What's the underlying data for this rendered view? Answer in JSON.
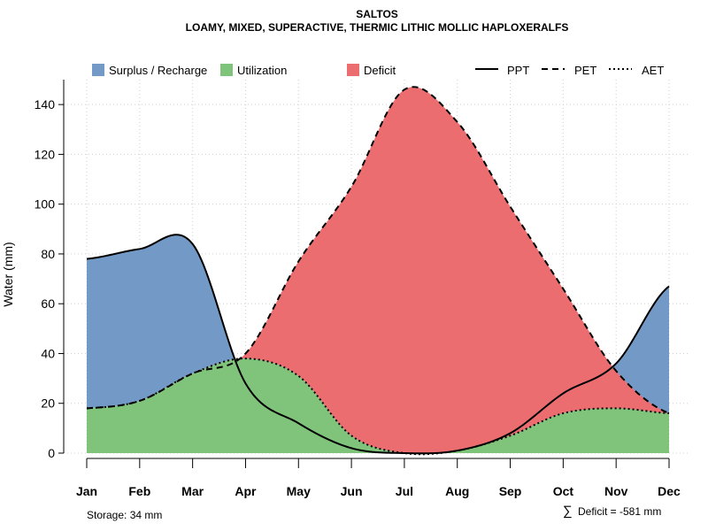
{
  "chart_data": {
    "type": "area",
    "title": "SALTOS",
    "subtitle": "LOAMY, MIXED, SUPERACTIVE, THERMIC LITHIC MOLLIC HAPLOXERALFS",
    "ylabel": "Water (mm)",
    "xlabel": "",
    "ylim": [
      0,
      150
    ],
    "yticks": [
      0,
      20,
      40,
      60,
      80,
      100,
      120,
      140
    ],
    "categories": [
      "Jan",
      "Feb",
      "Mar",
      "Apr",
      "May",
      "Jun",
      "Jul",
      "Aug",
      "Sep",
      "Oct",
      "Nov",
      "Dec"
    ],
    "grid": true,
    "legend_position": "top",
    "series": [
      {
        "name": "PPT",
        "style": "solid",
        "values": [
          78,
          82,
          84,
          28,
          12,
          2,
          0,
          1,
          8,
          24,
          36,
          67
        ]
      },
      {
        "name": "PET",
        "style": "dashed",
        "values": [
          18,
          21,
          32,
          40,
          77,
          107,
          146,
          133,
          99,
          66,
          33,
          16
        ]
      },
      {
        "name": "AET",
        "style": "dotted",
        "values": [
          18,
          21,
          32,
          38,
          31,
          7,
          0,
          1,
          7,
          16,
          18,
          16
        ]
      }
    ],
    "areas": [
      {
        "name": "Surplus / Recharge",
        "color": "#7399c6"
      },
      {
        "name": "Utilization",
        "color": "#7fc47a"
      },
      {
        "name": "Deficit",
        "color": "#ec6d6f"
      }
    ],
    "annotations": {
      "storage": "Storage: 34 mm",
      "deficit_symbol": "∑",
      "deficit": "Deficit = -581 mm"
    }
  }
}
